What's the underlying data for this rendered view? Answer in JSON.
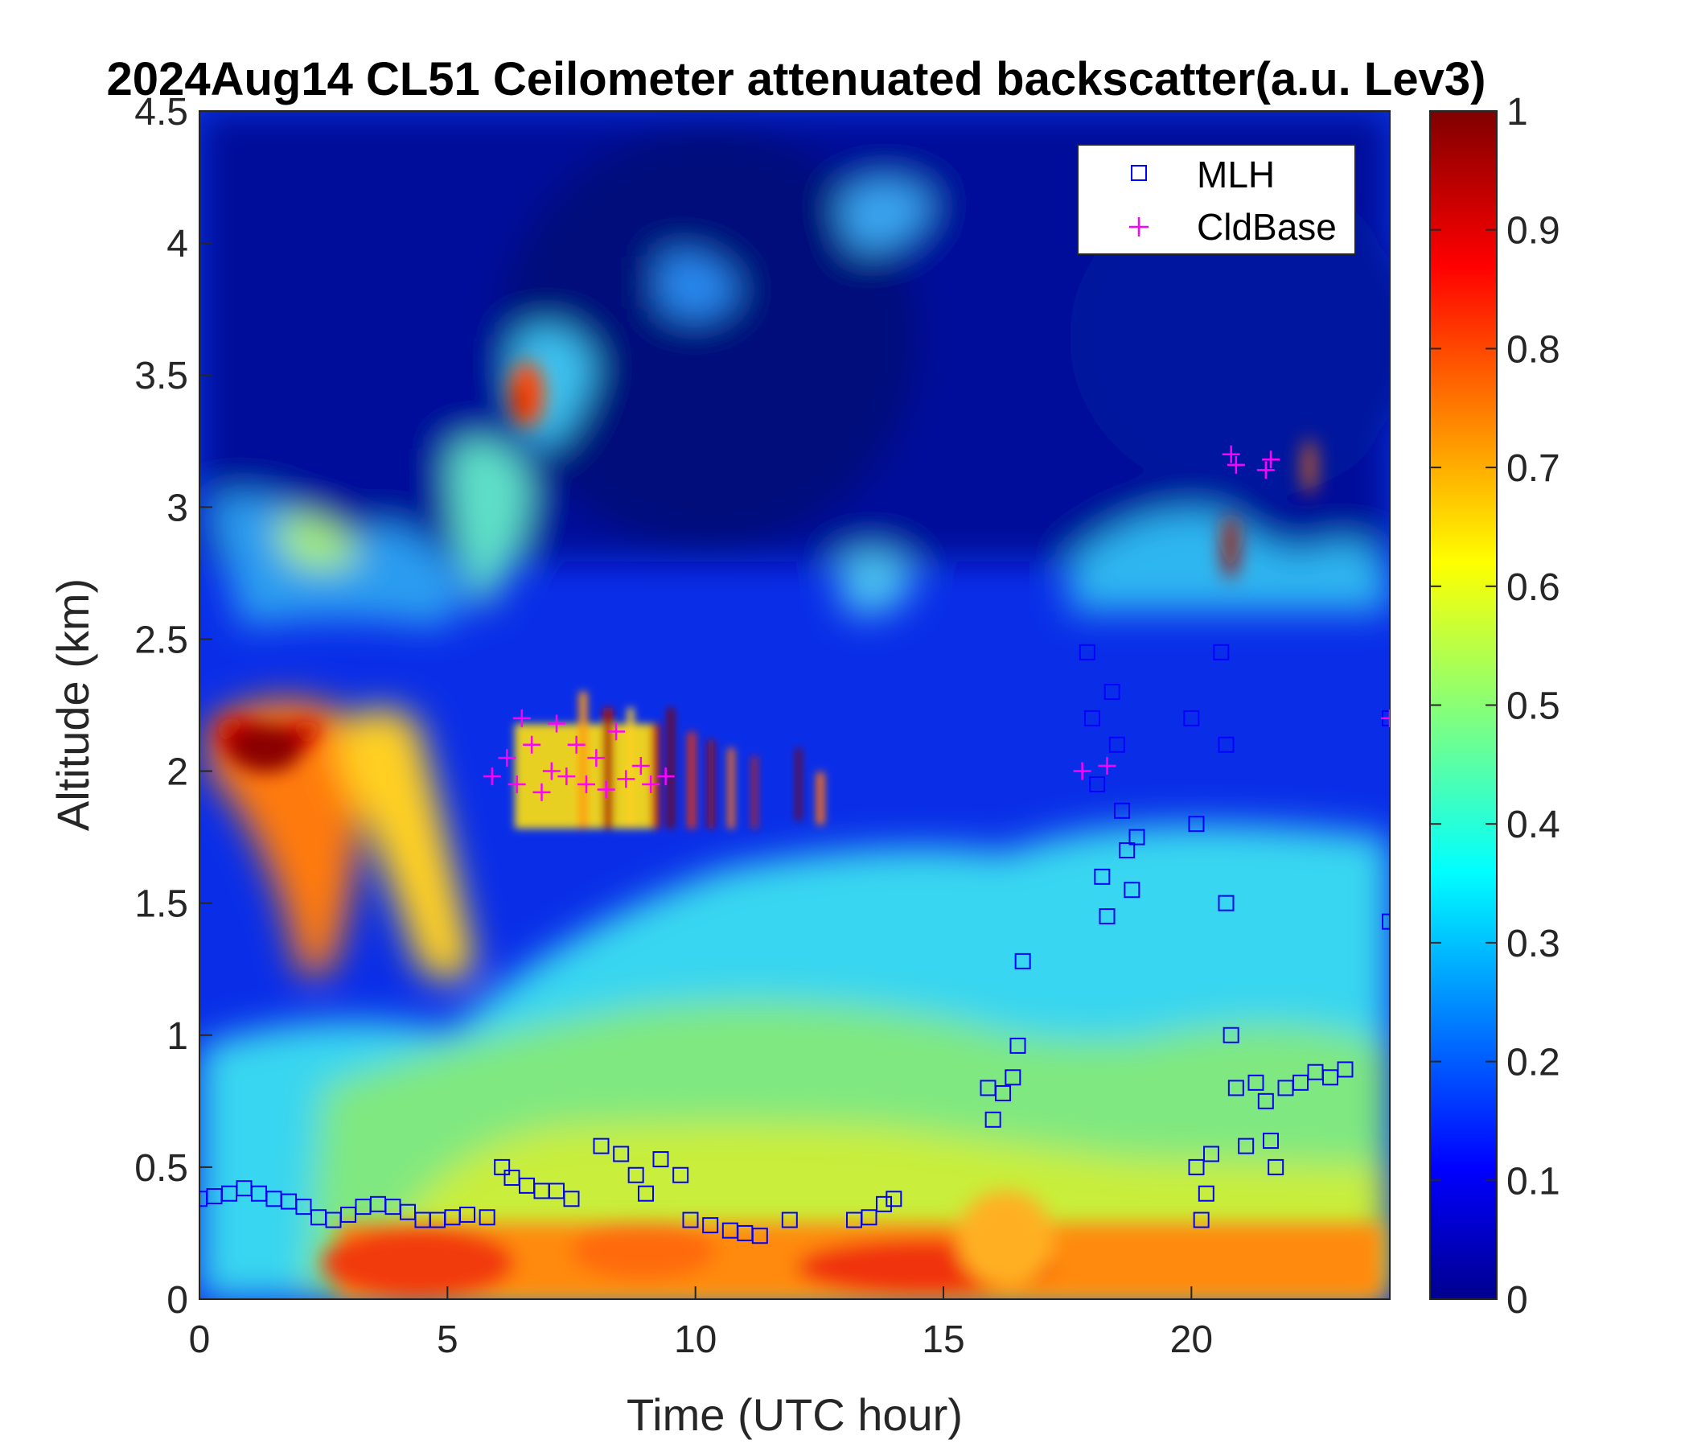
{
  "chart_data": {
    "type": "heatmap",
    "title": "2024Aug14 CL51 Ceilometer attenuated backscatter(a.u. Lev3)",
    "xlabel": "Time (UTC hour)",
    "ylabel": "Altitude (km)",
    "xlim": [
      0,
      24
    ],
    "ylim": [
      0,
      4.5
    ],
    "xticks": [
      0,
      5,
      10,
      15,
      20
    ],
    "yticks": [
      0,
      0.5,
      1,
      1.5,
      2,
      2.5,
      3,
      3.5,
      4,
      4.5
    ],
    "colorbar": {
      "range": [
        0,
        1
      ],
      "ticks": [
        0,
        0.1,
        0.2,
        0.3,
        0.4,
        0.5,
        0.6,
        0.7,
        0.8,
        0.9,
        1
      ],
      "colormap": "jet"
    },
    "legend_position": "top-right",
    "series": [
      {
        "name": "MLH",
        "marker": "square",
        "color": "#0000ff",
        "points": [
          [
            0,
            0.38
          ],
          [
            0.3,
            0.39
          ],
          [
            0.6,
            0.4
          ],
          [
            0.9,
            0.42
          ],
          [
            1.2,
            0.4
          ],
          [
            1.5,
            0.38
          ],
          [
            1.8,
            0.37
          ],
          [
            2.1,
            0.35
          ],
          [
            2.4,
            0.31
          ],
          [
            2.7,
            0.3
          ],
          [
            3.0,
            0.32
          ],
          [
            3.3,
            0.35
          ],
          [
            3.6,
            0.36
          ],
          [
            3.9,
            0.35
          ],
          [
            4.2,
            0.33
          ],
          [
            4.5,
            0.3
          ],
          [
            4.8,
            0.3
          ],
          [
            5.1,
            0.31
          ],
          [
            5.4,
            0.32
          ],
          [
            5.8,
            0.31
          ],
          [
            6.1,
            0.5
          ],
          [
            6.3,
            0.46
          ],
          [
            6.6,
            0.43
          ],
          [
            6.9,
            0.41
          ],
          [
            7.2,
            0.41
          ],
          [
            7.5,
            0.38
          ],
          [
            8.1,
            0.58
          ],
          [
            8.5,
            0.55
          ],
          [
            8.8,
            0.47
          ],
          [
            9.0,
            0.4
          ],
          [
            9.3,
            0.53
          ],
          [
            9.7,
            0.47
          ],
          [
            9.9,
            0.3
          ],
          [
            10.3,
            0.28
          ],
          [
            10.7,
            0.26
          ],
          [
            11.0,
            0.25
          ],
          [
            11.3,
            0.24
          ],
          [
            11.9,
            0.3
          ],
          [
            13.2,
            0.3
          ],
          [
            13.5,
            0.31
          ],
          [
            13.8,
            0.36
          ],
          [
            14.0,
            0.38
          ],
          [
            15.9,
            0.8
          ],
          [
            16.0,
            0.68
          ],
          [
            16.2,
            0.78
          ],
          [
            16.4,
            0.84
          ],
          [
            16.5,
            0.96
          ],
          [
            16.6,
            1.28
          ],
          [
            17.9,
            2.45
          ],
          [
            18.0,
            2.2
          ],
          [
            18.1,
            1.95
          ],
          [
            18.2,
            1.6
          ],
          [
            18.3,
            1.45
          ],
          [
            18.4,
            2.3
          ],
          [
            18.5,
            2.1
          ],
          [
            18.6,
            1.85
          ],
          [
            18.7,
            1.7
          ],
          [
            18.8,
            1.55
          ],
          [
            18.9,
            1.75
          ],
          [
            20.0,
            2.2
          ],
          [
            20.1,
            1.8
          ],
          [
            20.1,
            0.5
          ],
          [
            20.2,
            0.3
          ],
          [
            20.3,
            0.4
          ],
          [
            20.4,
            0.55
          ],
          [
            20.6,
            2.45
          ],
          [
            20.7,
            2.1
          ],
          [
            20.7,
            1.5
          ],
          [
            20.8,
            1.0
          ],
          [
            20.9,
            0.8
          ],
          [
            21.1,
            0.58
          ],
          [
            21.3,
            0.82
          ],
          [
            21.5,
            0.75
          ],
          [
            21.6,
            0.6
          ],
          [
            21.7,
            0.5
          ],
          [
            21.9,
            0.8
          ],
          [
            22.2,
            0.82
          ],
          [
            22.5,
            0.86
          ],
          [
            22.8,
            0.84
          ],
          [
            23.1,
            0.87
          ],
          [
            24,
            2.2
          ],
          [
            24,
            1.43
          ]
        ]
      },
      {
        "name": "CldBase",
        "marker": "plus",
        "color": "#ff00ff",
        "points": [
          [
            5.9,
            1.98
          ],
          [
            6.2,
            2.05
          ],
          [
            6.4,
            1.95
          ],
          [
            6.5,
            2.2
          ],
          [
            6.7,
            2.1
          ],
          [
            6.9,
            1.92
          ],
          [
            7.1,
            2.0
          ],
          [
            7.2,
            2.18
          ],
          [
            7.4,
            1.98
          ],
          [
            7.6,
            2.1
          ],
          [
            7.8,
            1.95
          ],
          [
            8.0,
            2.05
          ],
          [
            8.2,
            1.93
          ],
          [
            8.4,
            2.15
          ],
          [
            8.6,
            1.97
          ],
          [
            8.9,
            2.02
          ],
          [
            9.1,
            1.95
          ],
          [
            9.4,
            1.98
          ],
          [
            17.8,
            2.0
          ],
          [
            18.3,
            2.02
          ],
          [
            20.8,
            3.2
          ],
          [
            20.9,
            3.16
          ],
          [
            21.5,
            3.14
          ],
          [
            21.6,
            3.18
          ],
          [
            24,
            2.2
          ]
        ]
      }
    ]
  }
}
